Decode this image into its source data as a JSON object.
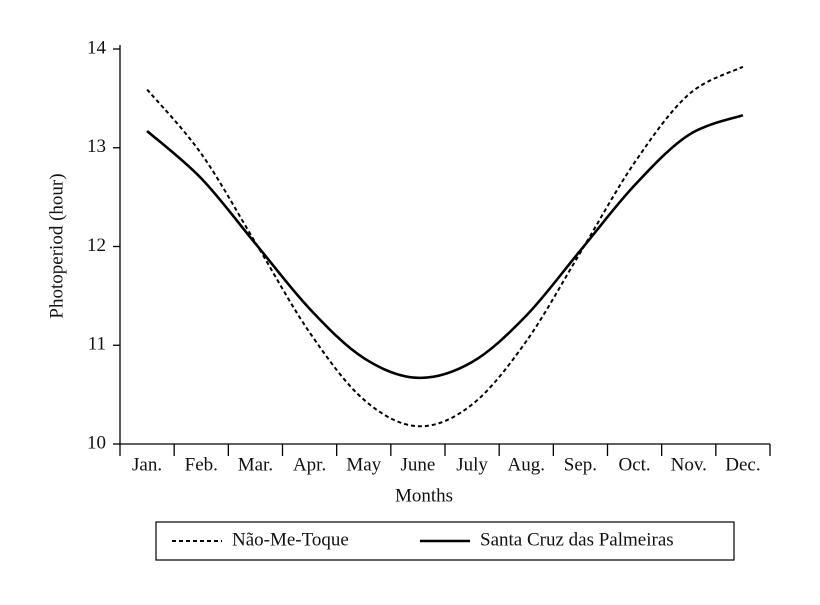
{
  "chart_data": {
    "type": "line",
    "x_label": "Months",
    "y_label": "Photoperiod (hour)",
    "categories": [
      "Jan.",
      "Feb.",
      "Mar.",
      "Apr.",
      "May",
      "June",
      "July",
      "Aug.",
      "Sep.",
      "Oct.",
      "Nov.",
      "Dec."
    ],
    "series": [
      {
        "name": "Não-Me-Toque",
        "color": "#000000",
        "dash": true,
        "values": [
          13.59,
          12.94,
          12.04,
          11.13,
          10.45,
          10.18,
          10.4,
          11.04,
          11.94,
          12.85,
          13.54,
          13.82
        ]
      },
      {
        "name": "Santa Cruz das Palmeiras",
        "color": "#000000",
        "dash": false,
        "values": [
          13.17,
          12.69,
          12.03,
          11.37,
          10.87,
          10.67,
          10.83,
          11.3,
          11.96,
          12.62,
          13.13,
          13.33
        ]
      }
    ],
    "ylim": [
      10,
      14
    ],
    "yticks": [
      10,
      11,
      12,
      13,
      14
    ],
    "grid": false,
    "legend": "bottom"
  }
}
